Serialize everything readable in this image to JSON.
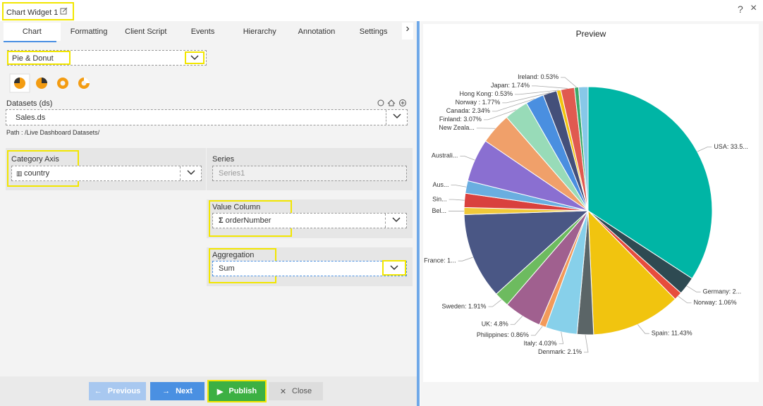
{
  "header": {
    "title": "Chart Widget 1",
    "help": "?",
    "close": "×"
  },
  "tabs": [
    "Chart",
    "Formatting",
    "Client Script",
    "Events",
    "Hierarchy",
    "Annotation",
    "Settings"
  ],
  "form": {
    "chart_type": "Pie & Donut",
    "datasets_label": "Datasets (ds)",
    "dataset": "Sales.ds",
    "path": "Path : /Live Dashboard Datasets/",
    "category_axis_label": "Category Axis",
    "category_axis": "country",
    "series_label": "Series",
    "series": "Series1",
    "value_column_label": "Value Column",
    "value_column": "orderNumber",
    "aggregation_label": "Aggregation",
    "aggregation": "Sum"
  },
  "buttons": {
    "previous": "Previous",
    "next": "Next",
    "publish": "Publish",
    "close": "Close"
  },
  "preview": {
    "title": "Preview"
  },
  "chart_data": {
    "type": "pie",
    "values": [
      33.5,
      2.3,
      1.06,
      11.43,
      2.1,
      4.03,
      0.86,
      4.8,
      1.91,
      11,
      0.9,
      1.8,
      1.6,
      5.5,
      4,
      3.07,
      2.34,
      1.77,
      0.53,
      1.74,
      0.53,
      1.2
    ],
    "value_labels": [
      "USA: 33.5...",
      "Germany: 2...",
      "Norway: 1.06%",
      "Spain: 11.43%",
      "Denmark: 2.1%",
      "Italy: 4.03%",
      "Philippines: 0.86%",
      "UK: 4.8%",
      "Sweden: 1.91%",
      "France: 1...",
      "Bel...",
      "Sin...",
      "Aus...",
      "Australi...",
      "New Zeala...",
      "Finland: 3.07%",
      "Canada: 2.34%",
      "Norway : 1.77%",
      "Hong Kong: 0.53%",
      "Japan: 1.74%",
      "Ireland: 0.53%",
      null
    ],
    "colors": [
      "#00b5a5",
      "#2e4a52",
      "#e74c3c",
      "#f1c40f",
      "#5b6567",
      "#87d0ea",
      "#f39a5a",
      "#a0608f",
      "#6dbb5f",
      "#4a5785",
      "#f0c93a",
      "#d9413e",
      "#6aaee0",
      "#8a6fd1",
      "#f0a06a",
      "#98dbb8",
      "#4a8fe0",
      "#44507a",
      "#f1c40f",
      "#e05a50",
      "#3aaa6a",
      "#87c8e8"
    ]
  }
}
